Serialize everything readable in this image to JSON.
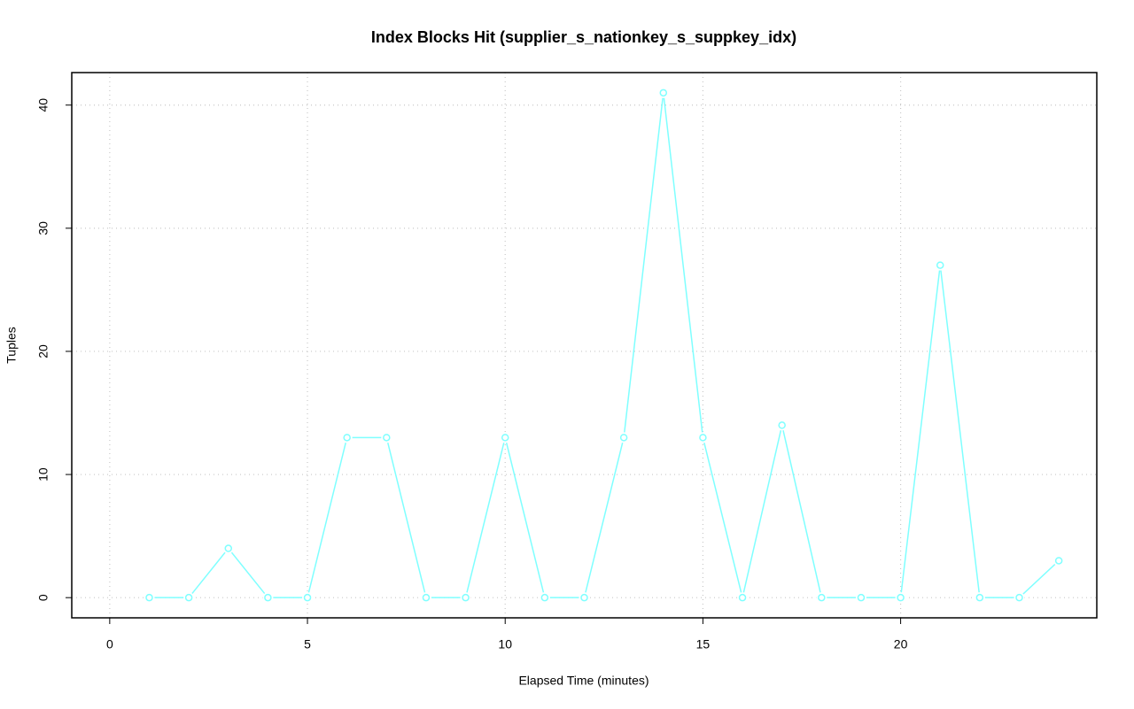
{
  "chart_data": {
    "type": "line",
    "title": "Index Blocks Hit (supplier_s_nationkey_s_suppkey_idx)",
    "x_label": "Elapsed Time (minutes)",
    "y_label": "Tuples",
    "x": [
      1,
      2,
      3,
      4,
      5,
      6,
      7,
      8,
      9,
      10,
      11,
      12,
      13,
      14,
      15,
      16,
      17,
      18,
      19,
      20,
      21,
      22,
      23,
      24
    ],
    "values": [
      0,
      0,
      4,
      0,
      0,
      13,
      13,
      0,
      0,
      13,
      0,
      0,
      13,
      41,
      13,
      0,
      14,
      0,
      0,
      0,
      27,
      0,
      0,
      3
    ],
    "color": "#7fffff",
    "xlim": [
      -0.96,
      24.96
    ],
    "xticks": [
      0,
      5,
      10,
      15,
      20
    ],
    "ylim": [
      -1.64,
      42.64
    ],
    "yticks": [
      0,
      10,
      20,
      30,
      40
    ],
    "grid": true
  }
}
